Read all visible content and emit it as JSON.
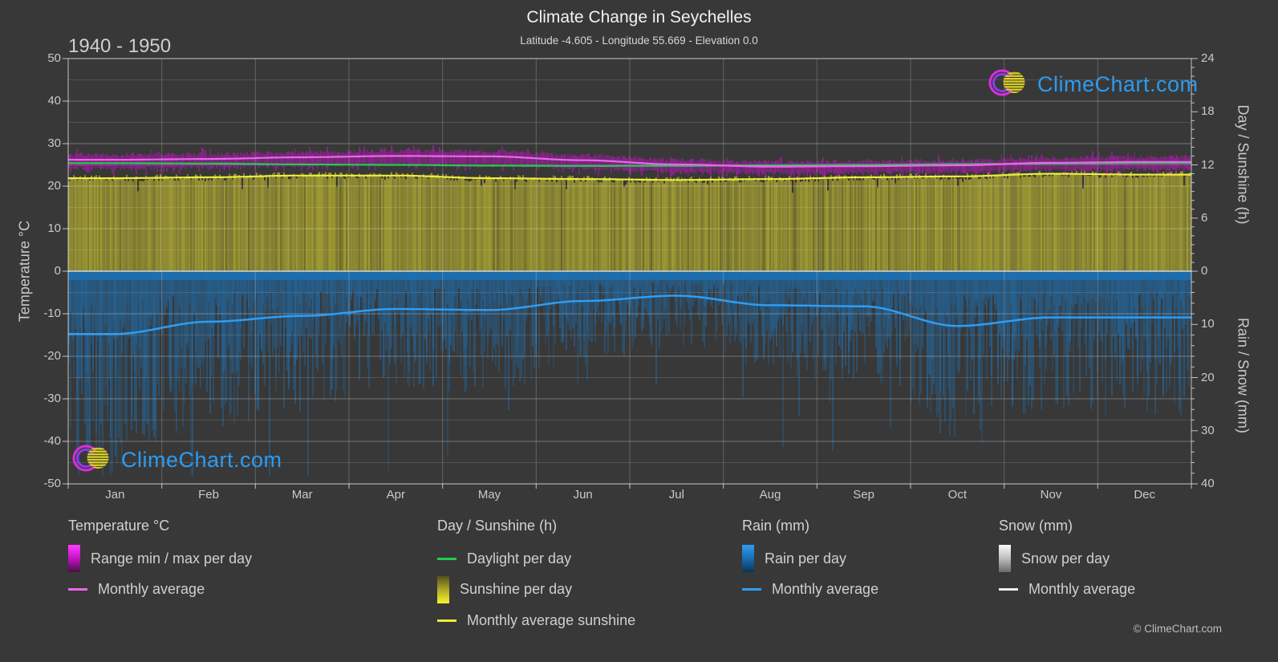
{
  "header": {
    "title": "Climate Change in Seychelles",
    "subtitle": "Latitude -4.605 - Longitude 55.669 - Elevation 0.0",
    "period": "1940 - 1950"
  },
  "watermark": {
    "text": "ClimeChart.com"
  },
  "footer": {
    "copyright": "© ClimeChart.com"
  },
  "axes": {
    "left": {
      "title": "Temperature °C",
      "ticks": [
        50,
        40,
        30,
        20,
        10,
        0,
        -10,
        -20,
        -30,
        -40,
        -50
      ]
    },
    "right_day": {
      "title": "Day / Sunshine (h)",
      "ticks": [
        24,
        18,
        12,
        6,
        0
      ]
    },
    "right_rain": {
      "title": "Rain / Snow (mm)",
      "ticks": [
        0,
        10,
        20,
        30,
        40
      ]
    },
    "x": {
      "months": [
        "Jan",
        "Feb",
        "Mar",
        "Apr",
        "May",
        "Jun",
        "Jul",
        "Aug",
        "Sep",
        "Oct",
        "Nov",
        "Dec"
      ]
    }
  },
  "legend": {
    "groups": [
      {
        "title": "Temperature °C",
        "items": [
          {
            "swatch": "grad-magenta",
            "label": "Range min / max per day"
          },
          {
            "swatch": "line-magenta",
            "label": "Monthly average"
          }
        ]
      },
      {
        "title": "Day / Sunshine (h)",
        "items": [
          {
            "swatch": "line-green",
            "label": "Daylight per day"
          },
          {
            "swatch": "grad-yellow",
            "label": "Sunshine per day"
          },
          {
            "swatch": "line-yellow",
            "label": "Monthly average sunshine"
          }
        ]
      },
      {
        "title": "Rain (mm)",
        "items": [
          {
            "swatch": "grad-blue",
            "label": "Rain per day"
          },
          {
            "swatch": "line-blue",
            "label": "Monthly average"
          }
        ]
      },
      {
        "title": "Snow (mm)",
        "items": [
          {
            "swatch": "grad-white",
            "label": "Snow per day"
          },
          {
            "swatch": "line-white",
            "label": "Monthly average"
          }
        ]
      }
    ]
  },
  "colors": {
    "background": "#383838",
    "temp_range_fill": "#c215c2",
    "temp_avg_line": "#ef64ef",
    "daylight_line": "#1fce4c",
    "sunshine_fill": "#a9a332",
    "sunshine_avg_line": "#eded3c",
    "rain_fill": "#1e6fb0",
    "rain_avg_line": "#2e9df4",
    "snow_fill": "#d9d9d9",
    "snow_avg_line": "#efefef",
    "logo_text": "#2b9bf2"
  },
  "chart_data": {
    "type": "area",
    "subtype": "composite-climate-chart",
    "months": [
      "Jan",
      "Feb",
      "Mar",
      "Apr",
      "May",
      "Jun",
      "Jul",
      "Aug",
      "Sep",
      "Oct",
      "Nov",
      "Dec"
    ],
    "temperature_c": {
      "monthly_average": [
        26.2,
        26.4,
        26.8,
        27.1,
        27.0,
        26.1,
        25.1,
        24.6,
        24.7,
        24.9,
        25.5,
        25.7
      ],
      "daily_range_max_typical": [
        27.4,
        27.6,
        28.0,
        28.3,
        28.2,
        27.3,
        26.2,
        25.7,
        25.8,
        26.0,
        26.6,
        26.9
      ],
      "daily_range_min_typical": [
        24.2,
        24.4,
        24.8,
        25.1,
        25.0,
        24.2,
        23.4,
        23.0,
        23.1,
        23.3,
        23.8,
        24.0
      ]
    },
    "day_sunshine_h": {
      "daylight_per_day": [
        12.2,
        12.15,
        12.05,
        12.0,
        11.92,
        11.88,
        11.9,
        11.95,
        12.0,
        12.08,
        12.15,
        12.2
      ],
      "sunshine_monthly_average": [
        10.5,
        10.6,
        10.8,
        10.8,
        10.5,
        10.4,
        10.3,
        10.4,
        10.6,
        10.7,
        11.0,
        10.9
      ]
    },
    "rain_mm": {
      "monthly_average_per_day": [
        11.8,
        9.5,
        8.4,
        7.1,
        7.3,
        5.6,
        4.6,
        6.4,
        6.6,
        10.3,
        8.7,
        8.7
      ]
    },
    "snow_mm": {
      "monthly_average_per_day": [
        0,
        0,
        0,
        0,
        0,
        0,
        0,
        0,
        0,
        0,
        0,
        0
      ]
    },
    "axis_ranges": {
      "temperature_c": [
        -50,
        50
      ],
      "day_sunshine_h": [
        0,
        24
      ],
      "rain_snow_mm": [
        0,
        40
      ]
    },
    "layout": {
      "grid": "monthly verticals, 10°C major / 5°C minor horizontals",
      "legend_position": "bottom"
    }
  }
}
